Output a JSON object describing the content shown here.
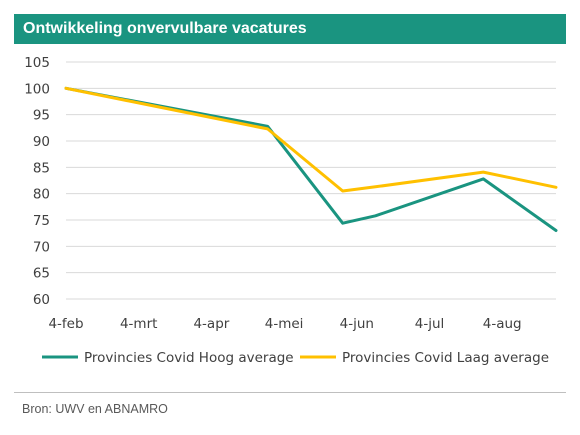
{
  "title": "Ontwikkeling onvervulbare vacatures",
  "source": "Bron: UWV en ABNAMRO",
  "colors": {
    "header_bg": "#1a9480",
    "series_hoog": "#1a9480",
    "series_laag": "#ffc000",
    "grid": "#d9d9d9"
  },
  "chart_data": {
    "type": "line",
    "title": "Ontwikkeling onvervulbare vacatures",
    "xlabel": "",
    "ylabel": "",
    "x_tick_labels": [
      "4-feb",
      "4-mrt",
      "4-apr",
      "4-mei",
      "4-jun",
      "4-jul",
      "4-aug"
    ],
    "x_range": [
      "2020-02-04",
      "2020-08-31"
    ],
    "ylim": [
      60,
      105
    ],
    "y_ticks": [
      60,
      65,
      70,
      75,
      80,
      85,
      90,
      95,
      100,
      105
    ],
    "grid": "horizontal",
    "legend_position": "bottom",
    "series": [
      {
        "name": "Provincies Covid Hoog average",
        "color": "#1a9480",
        "points": [
          {
            "x": "2020-02-04",
            "y": 100
          },
          {
            "x": "2020-04-30",
            "y": 92.8
          },
          {
            "x": "2020-06-01",
            "y": 74.4
          },
          {
            "x": "2020-06-15",
            "y": 75.8
          },
          {
            "x": "2020-07-31",
            "y": 82.8
          },
          {
            "x": "2020-08-31",
            "y": 73
          }
        ]
      },
      {
        "name": "Provincies Covid Laag average",
        "color": "#ffc000",
        "points": [
          {
            "x": "2020-02-04",
            "y": 100
          },
          {
            "x": "2020-04-30",
            "y": 92.3
          },
          {
            "x": "2020-06-01",
            "y": 80.5
          },
          {
            "x": "2020-06-15",
            "y": 81.3
          },
          {
            "x": "2020-07-31",
            "y": 84.1
          },
          {
            "x": "2020-08-31",
            "y": 81.2
          }
        ]
      }
    ]
  }
}
